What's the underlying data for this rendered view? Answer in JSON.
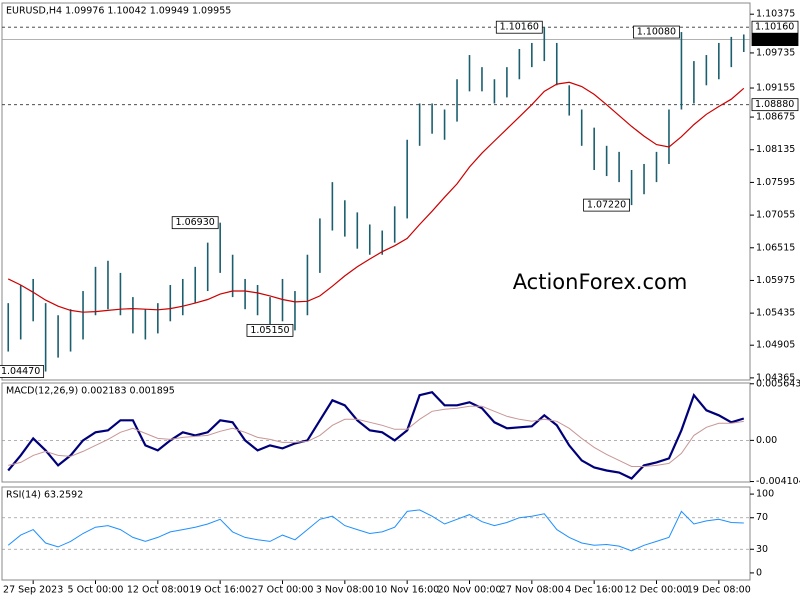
{
  "chart_data": [
    {
      "type": "hilo",
      "title": "EURUSD,H4  1.09976 1.10042 1.09949 1.09955",
      "watermark": "ActionForex.com",
      "color": "#1b5e6e",
      "categories": [
        null,
        null,
        "27 Sep 2023",
        null,
        null,
        null,
        null,
        "5 Oct 00:00",
        null,
        null,
        null,
        null,
        "12 Oct 08:00",
        null,
        null,
        null,
        null,
        "19 Oct 16:00",
        null,
        null,
        null,
        null,
        "27 Oct 00:00",
        null,
        null,
        null,
        null,
        "3 Nov 08:00",
        null,
        null,
        null,
        null,
        "10 Nov 16:00",
        null,
        null,
        null,
        null,
        "20 Nov 00:00",
        null,
        null,
        null,
        null,
        "27 Nov 08:00",
        null,
        null,
        null,
        null,
        "4 Dec 16:00",
        null,
        null,
        null,
        null,
        "12 Dec 00:00",
        null,
        null,
        null,
        null,
        "19 Dec 08:00",
        null,
        null
      ],
      "low": [
        1.048,
        1.05,
        1.053,
        1.0447,
        1.047,
        1.048,
        1.05,
        1.054,
        1.055,
        1.054,
        1.051,
        1.05,
        1.051,
        1.053,
        1.054,
        1.056,
        1.058,
        1.061,
        1.057,
        1.055,
        1.054,
        1.052,
        1.053,
        1.0515,
        1.054,
        1.061,
        1.068,
        1.067,
        1.065,
        1.064,
        1.064,
        1.066,
        1.07,
        1.082,
        1.084,
        1.083,
        1.086,
        1.091,
        1.091,
        1.089,
        1.09,
        1.093,
        1.095,
        1.096,
        1.092,
        1.087,
        1.082,
        1.078,
        1.077,
        1.076,
        1.0722,
        1.074,
        1.076,
        1.079,
        1.088,
        1.089,
        1.092,
        1.093,
        1.095,
        1.0975
      ],
      "high": [
        1.056,
        1.059,
        1.06,
        1.056,
        1.054,
        1.055,
        1.058,
        1.062,
        1.063,
        1.061,
        1.057,
        1.055,
        1.056,
        1.059,
        1.06,
        1.062,
        1.066,
        1.0693,
        1.064,
        1.06,
        1.059,
        1.057,
        1.06,
        1.058,
        1.064,
        1.07,
        1.076,
        1.073,
        1.071,
        1.069,
        1.068,
        1.072,
        1.083,
        1.089,
        1.089,
        1.088,
        1.093,
        1.097,
        1.095,
        1.093,
        1.095,
        1.098,
        1.099,
        1.1016,
        1.099,
        1.092,
        1.088,
        1.085,
        1.082,
        1.081,
        1.078,
        1.079,
        1.081,
        1.088,
        1.1008,
        1.096,
        1.097,
        1.099,
        1.1,
        1.1004
      ],
      "ma": {
        "color": "#cc0000",
        "values": [
          1.06,
          1.059,
          1.0578,
          1.0565,
          1.0555,
          1.0548,
          1.0545,
          1.0546,
          1.0548,
          1.055,
          1.0551,
          1.055,
          1.0549,
          1.0551,
          1.0555,
          1.056,
          1.0566,
          1.0575,
          1.058,
          1.058,
          1.0577,
          1.0572,
          1.0566,
          1.0562,
          1.0563,
          1.0572,
          1.0588,
          1.0605,
          1.062,
          1.0633,
          1.0645,
          1.0655,
          1.0667,
          1.069,
          1.0712,
          1.0735,
          1.0757,
          1.0785,
          1.0808,
          1.0828,
          1.0848,
          1.0868,
          1.0888,
          1.091,
          1.0922,
          1.0925,
          1.0918,
          1.0905,
          1.0888,
          1.087,
          1.0852,
          1.0836,
          1.0822,
          1.0818,
          1.0835,
          1.0855,
          1.0872,
          1.0885,
          1.0897,
          1.0915
        ]
      },
      "ylim": [
        1.0433,
        1.1056
      ],
      "yticks": [
        1.04365,
        1.04905,
        1.05435,
        1.05975,
        1.06515,
        1.07055,
        1.07595,
        1.08135,
        1.08675,
        1.09155,
        1.09735,
        1.10375
      ],
      "levels": [
        {
          "value": 1.1016,
          "label": "1.10160",
          "style": "dashed"
        },
        {
          "value": 1.0888,
          "label": "1.08880",
          "style": "dashed"
        },
        {
          "value": 1.09955,
          "label": "1.09955",
          "style": "current"
        }
      ],
      "annotations": [
        {
          "value": 1.0447,
          "label": "1.04470"
        },
        {
          "value": 1.0693,
          "label": "1.06930"
        },
        {
          "value": 1.0515,
          "label": "1.05150"
        },
        {
          "value": 1.1016,
          "label": "1.10160"
        },
        {
          "value": 1.0722,
          "label": "1.07220"
        },
        {
          "value": 1.1008,
          "label": "1.10080"
        }
      ]
    },
    {
      "type": "line",
      "title": "MACD(12,26,9) 0.002183 0.001895",
      "ylim": [
        -0.00415,
        0.00572
      ],
      "yticks": [
        -0.004104,
        {
          "value": 0,
          "label": "0.00"
        },
        0.005643
      ],
      "levels": [
        0
      ],
      "series": [
        {
          "color": "#00007a",
          "width": 2.2,
          "values": [
            -0.003,
            -0.0015,
            0.0002,
            -0.001,
            -0.0025,
            -0.0015,
            0,
            0.0008,
            0.001,
            0.002,
            0.002,
            -0.0005,
            -0.001,
            0,
            0.0008,
            0.0005,
            0.0008,
            0.002,
            0.0018,
            0,
            -0.001,
            -0.0005,
            -0.0008,
            -0.0003,
            0,
            0.002,
            0.004,
            0.0035,
            0.002,
            0.001,
            0.0008,
            0,
            0.001,
            0.0045,
            0.0048,
            0.0035,
            0.0035,
            0.0038,
            0.0032,
            0.0018,
            0.0012,
            0.0013,
            0.0014,
            0.0025,
            0.0015,
            -0.0005,
            -0.002,
            -0.0027,
            -0.003,
            -0.0032,
            -0.0038,
            -0.0025,
            -0.0022,
            -0.0018,
            0.001,
            0.0045,
            0.003,
            0.0025,
            0.0018,
            0.002183
          ]
        },
        {
          "color": "#c89696",
          "width": 1,
          "values": [
            -0.0025,
            -0.0022,
            -0.0015,
            -0.0011,
            -0.0015,
            -0.0016,
            -0.0011,
            -0.0005,
            0.0001,
            0.0008,
            0.0012,
            0.0007,
            0.0002,
            0.0001,
            0.0003,
            0.0004,
            0.0005,
            0.0009,
            0.0012,
            0.0008,
            0.0003,
            0.0001,
            -0.0002,
            -0.0002,
            -0.0001,
            0.0005,
            0.0015,
            0.0021,
            0.0021,
            0.0018,
            0.0015,
            0.0011,
            0.0011,
            0.0021,
            0.0029,
            0.0031,
            0.0032,
            0.0034,
            0.0034,
            0.0029,
            0.0024,
            0.0021,
            0.0019,
            0.0021,
            0.0019,
            0.0012,
            0.0002,
            -0.0007,
            -0.0014,
            -0.002,
            -0.0026,
            -0.0026,
            -0.0025,
            -0.0023,
            -0.0013,
            0.0005,
            0.0013,
            0.0017,
            0.0017,
            0.001895
          ]
        }
      ]
    },
    {
      "type": "line",
      "title": "RSI(14) 63.2592",
      "ylim": [
        -9,
        109
      ],
      "yticks": [
        0,
        30,
        70,
        100
      ],
      "levels": [
        30,
        70
      ],
      "series": [
        {
          "color": "#1e90ff",
          "width": 1,
          "values": [
            35,
            48,
            55,
            38,
            33,
            40,
            50,
            58,
            60,
            55,
            45,
            40,
            45,
            52,
            55,
            58,
            62,
            68,
            52,
            45,
            42,
            40,
            48,
            42,
            55,
            68,
            72,
            60,
            55,
            50,
            52,
            58,
            78,
            80,
            72,
            62,
            68,
            74,
            65,
            60,
            64,
            70,
            72,
            75,
            55,
            45,
            38,
            35,
            36,
            34,
            28,
            35,
            40,
            45,
            78,
            62,
            66,
            68,
            64,
            63.2592
          ]
        }
      ]
    }
  ]
}
